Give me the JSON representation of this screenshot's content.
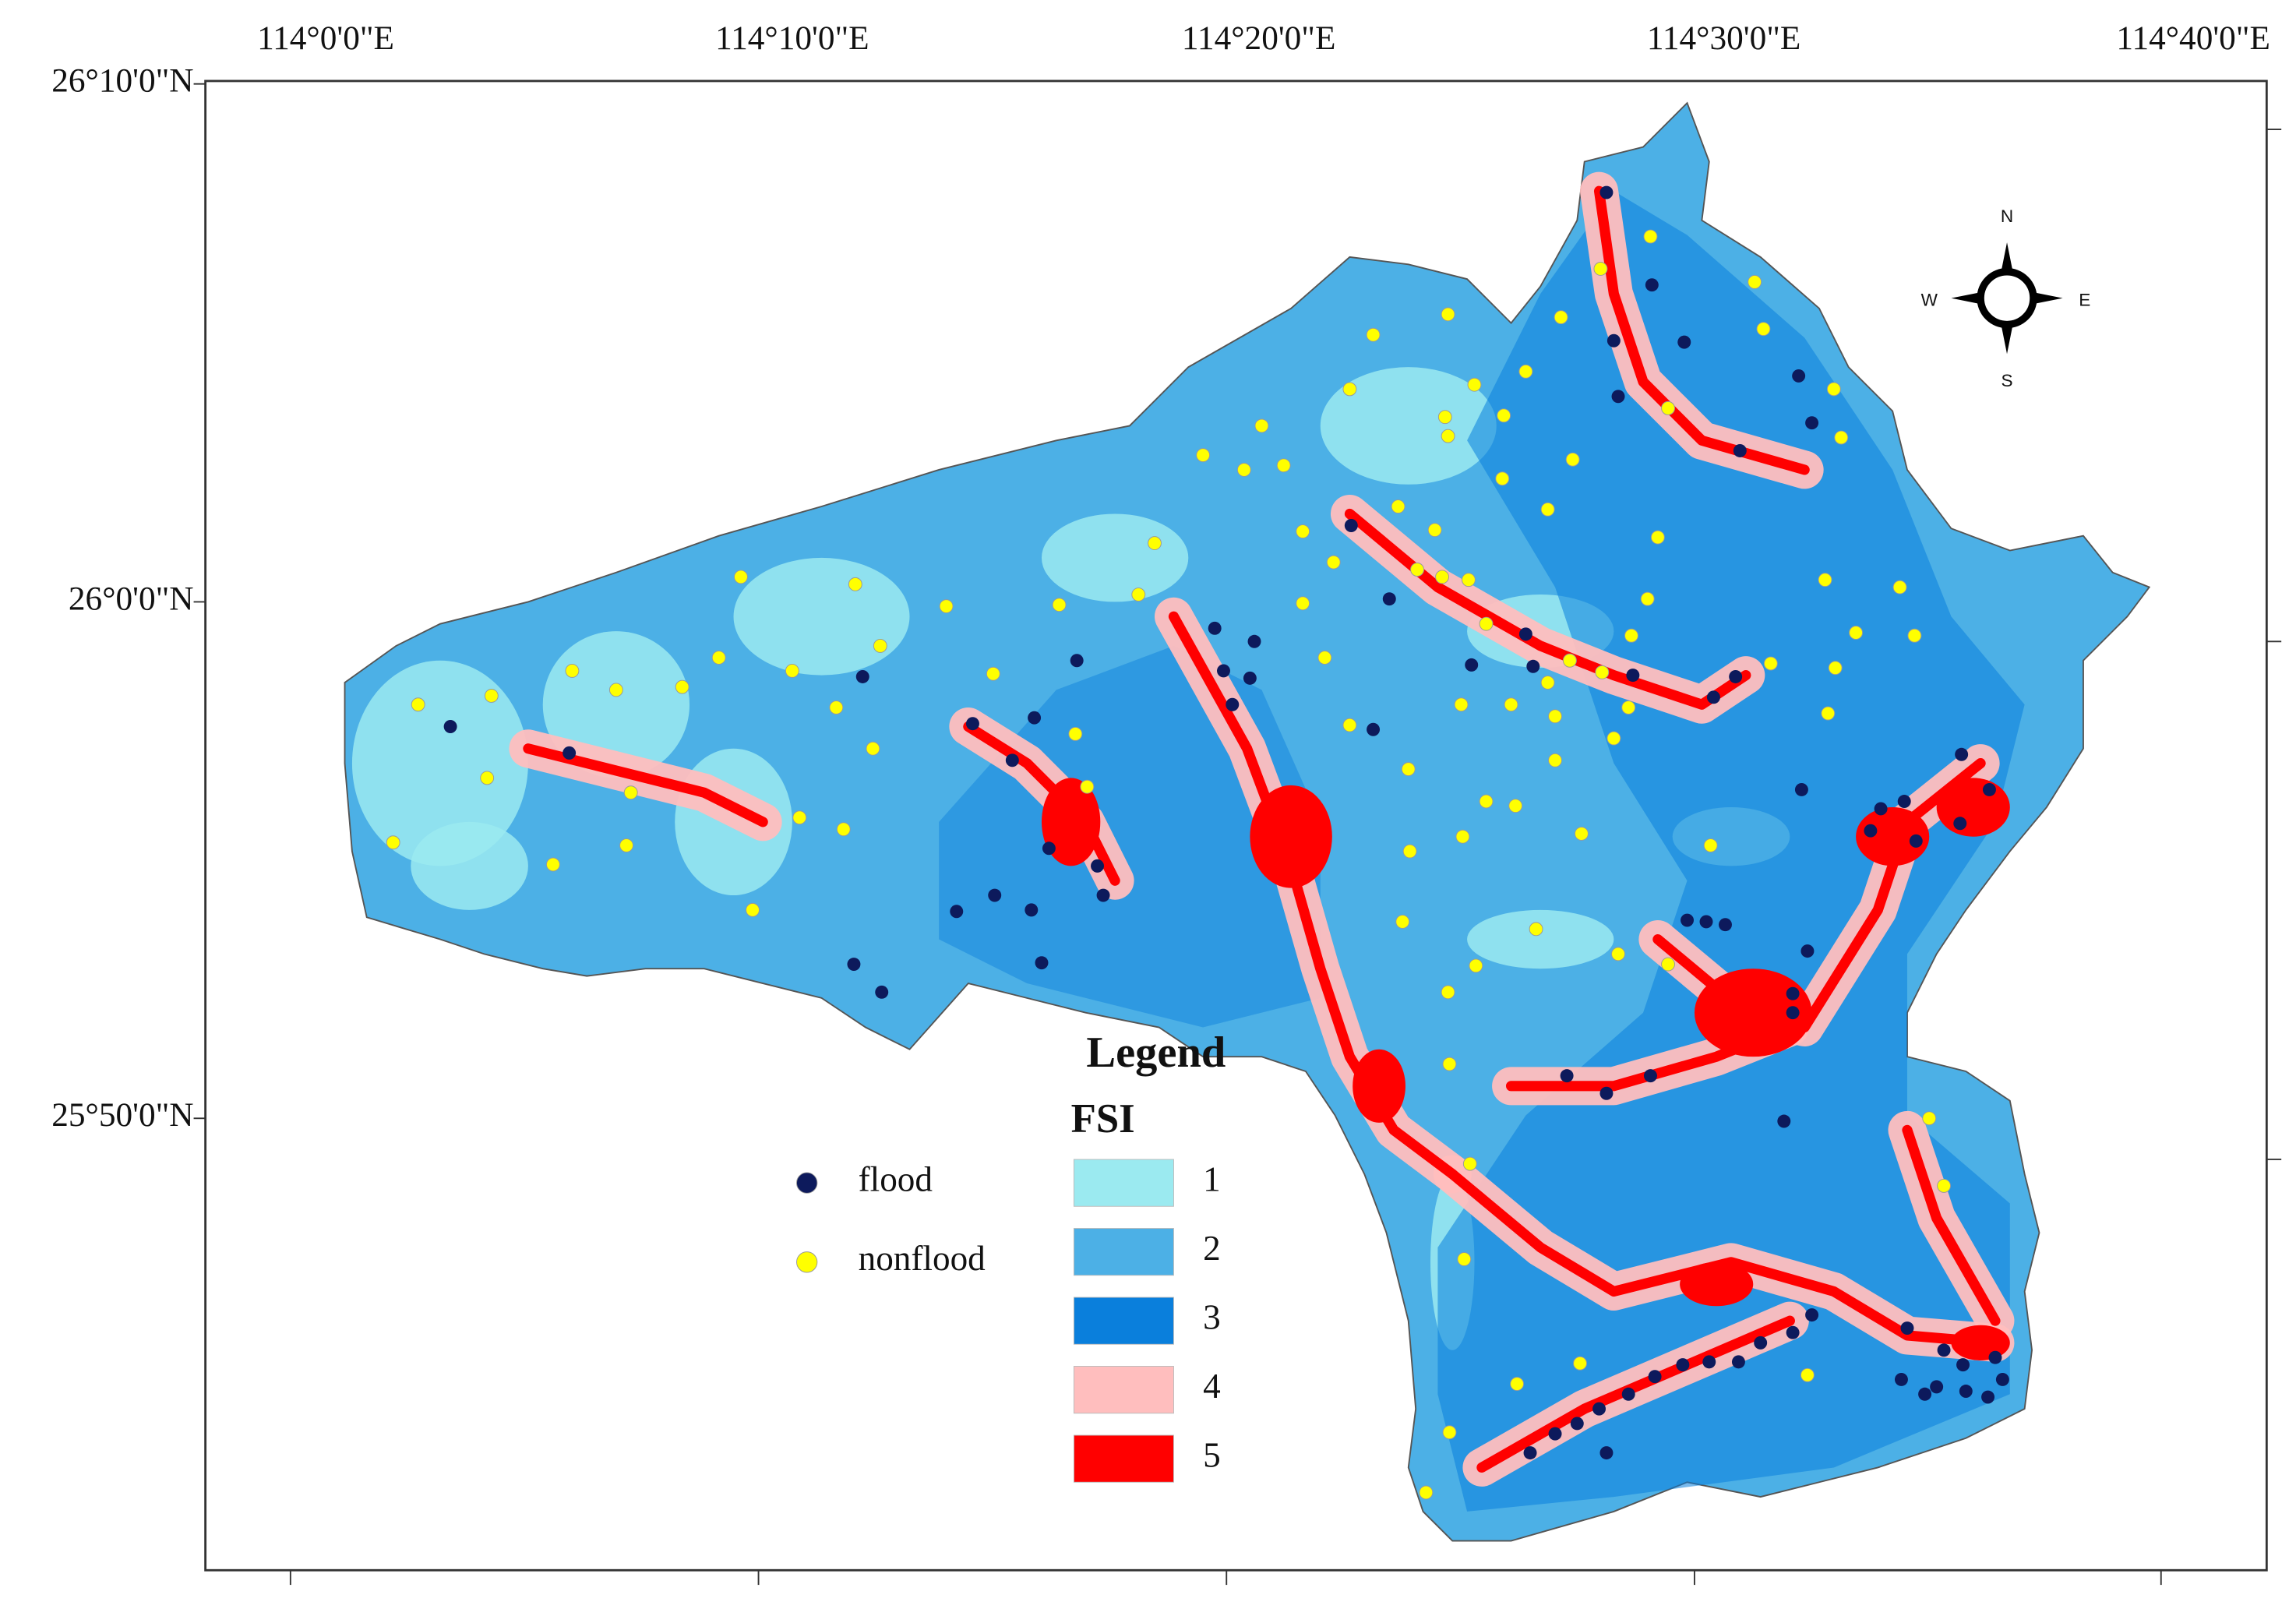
{
  "map": {
    "longitude_labels": [
      "114°0'0\"E",
      "114°10'0\"E",
      "114°20'0\"E",
      "114°30'0\"E",
      "114°40'0\"E"
    ],
    "latitude_labels": [
      "26°10'0\"N",
      "26°0'0\"N",
      "25°50'0\"N"
    ],
    "compass": {
      "n": "N",
      "e": "E",
      "s": "S",
      "w": "W"
    },
    "legend": {
      "title": "Legend",
      "points": [
        {
          "label": "flood",
          "color": "#0d1a5c"
        },
        {
          "label": "nonflood",
          "color": "#ffff00"
        }
      ],
      "fsi": {
        "title": "FSI",
        "classes": [
          {
            "label": "1",
            "color": "#9beaf0"
          },
          {
            "label": "2",
            "color": "#4cb0e6"
          },
          {
            "label": "3",
            "color": "#0a7fdc"
          },
          {
            "label": "4",
            "color": "#ffbebe"
          },
          {
            "label": "5",
            "color": "#ff0000"
          }
        ]
      }
    }
  }
}
